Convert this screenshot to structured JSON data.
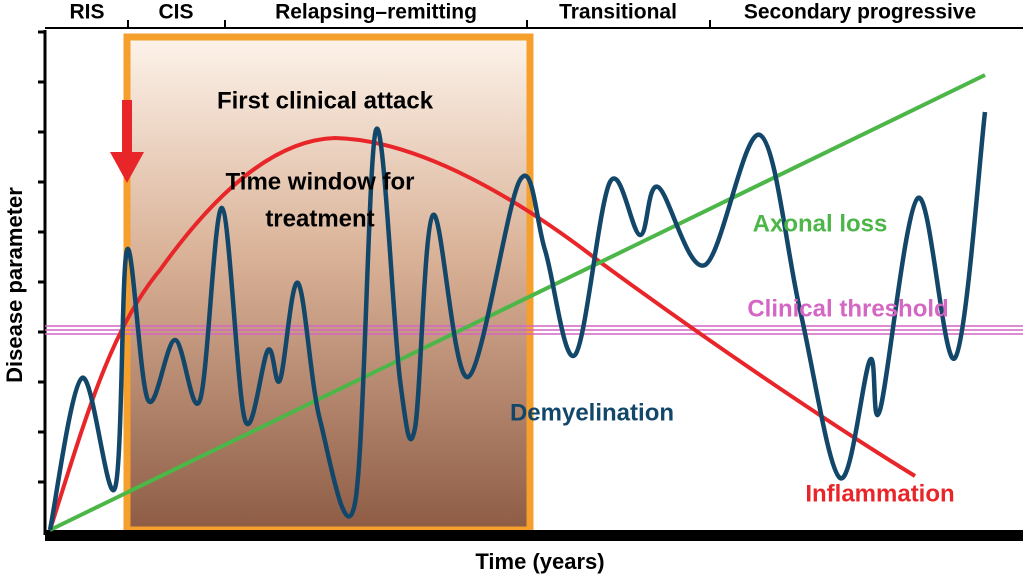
{
  "header": {
    "phases": [
      "RIS",
      "CIS",
      "Relapsing–remitting",
      "Transitional",
      "Secondary progressive"
    ]
  },
  "annotations": {
    "first_attack": "First clinical attack",
    "window": [
      "Time window for",
      "treatment"
    ],
    "axonal_loss": "Axonal loss",
    "threshold": "Clinical threshold",
    "demyelination": "Demyelination",
    "inflammation": "Inflammation"
  },
  "axes": {
    "y_label": "Disease parameter",
    "x_label": "Time (years)"
  }
}
